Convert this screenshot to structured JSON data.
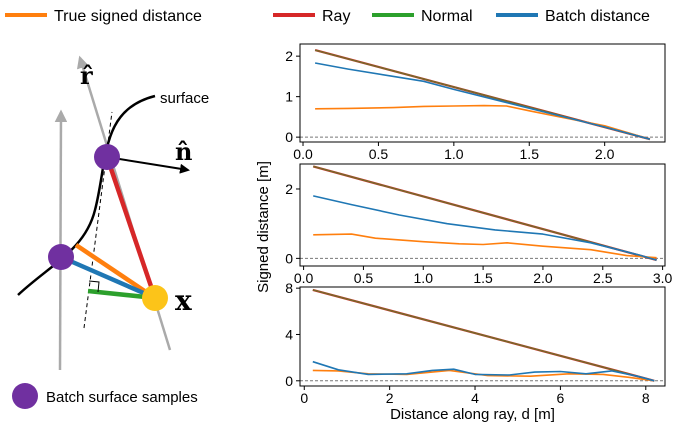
{
  "legend": {
    "items": [
      {
        "label": "True signed distance",
        "color": "#ff7f0e"
      },
      {
        "label": "Ray",
        "color": "#d62728"
      },
      {
        "label": "Normal",
        "color": "#2ca02c"
      },
      {
        "label": "Batch distance",
        "color": "#1f77b4"
      }
    ],
    "placement": "top"
  },
  "diagram": {
    "surface_label": "surface",
    "ray_label": "r̂",
    "normal_label": "n̂",
    "point_label": "x",
    "samples_label": "Batch surface samples",
    "sample_color": "#7030a0",
    "point_color": "#fcc419"
  },
  "chart_data": [
    {
      "type": "line",
      "xlim": [
        -0.02,
        2.4
      ],
      "ylim": [
        -0.12,
        2.3
      ],
      "xticks": [
        0.0,
        0.5,
        1.0,
        1.5,
        2.0
      ],
      "xtick_labels": [
        "0.0",
        "0.5",
        "1.0",
        "1.5",
        "2.0"
      ],
      "yticks": [
        0,
        1,
        2
      ],
      "ytick_labels": [
        "0",
        "1",
        "2"
      ],
      "zero_line": true,
      "series": [
        {
          "key": "ray",
          "color": "#d62728",
          "x": [
            0.08,
            2.3
          ],
          "y": [
            2.15,
            -0.05
          ]
        },
        {
          "key": "normal",
          "color": "#2ca02c",
          "x": [
            0.08,
            2.3
          ],
          "y": [
            2.15,
            -0.05
          ]
        },
        {
          "key": "true",
          "color": "#ff7f0e",
          "x": [
            0.08,
            0.3,
            0.6,
            0.8,
            1.0,
            1.2,
            1.35,
            1.5,
            1.7,
            2.0,
            2.3
          ],
          "y": [
            0.7,
            0.71,
            0.73,
            0.76,
            0.77,
            0.78,
            0.77,
            0.65,
            0.5,
            0.28,
            -0.05
          ]
        },
        {
          "key": "batch",
          "color": "#1f77b4",
          "x": [
            0.08,
            0.3,
            0.6,
            0.8,
            1.0,
            1.3,
            1.6,
            2.0,
            2.3
          ],
          "y": [
            1.83,
            1.68,
            1.5,
            1.38,
            1.18,
            0.9,
            0.62,
            0.25,
            -0.05
          ]
        }
      ]
    },
    {
      "type": "line",
      "xlim": [
        -0.03,
        3.02
      ],
      "ylim": [
        -0.22,
        2.72
      ],
      "xticks": [
        0.0,
        0.5,
        1.0,
        1.5,
        2.0,
        2.5,
        3.0
      ],
      "xtick_labels": [
        "0.0",
        "0.5",
        "1.0",
        "1.5",
        "2.0",
        "2.5",
        "3.0"
      ],
      "yticks": [
        0,
        2
      ],
      "ytick_labels": [
        "0",
        "2"
      ],
      "zero_line": true,
      "series": [
        {
          "key": "ray",
          "color": "#d62728",
          "x": [
            0.08,
            2.95
          ],
          "y": [
            2.65,
            -0.05
          ]
        },
        {
          "key": "normal",
          "color": "#2ca02c",
          "x": [
            0.08,
            2.95
          ],
          "y": [
            2.65,
            -0.05
          ]
        },
        {
          "key": "true",
          "color": "#ff7f0e",
          "x": [
            0.08,
            0.4,
            0.6,
            1.0,
            1.3,
            1.5,
            1.7,
            2.0,
            2.4,
            2.7,
            2.95
          ],
          "y": [
            0.68,
            0.7,
            0.58,
            0.48,
            0.42,
            0.4,
            0.45,
            0.35,
            0.25,
            0.08,
            0.02
          ]
        },
        {
          "key": "batch",
          "color": "#1f77b4",
          "x": [
            0.08,
            0.4,
            0.8,
            1.2,
            1.6,
            2.0,
            2.4,
            2.8,
            2.95
          ],
          "y": [
            1.8,
            1.55,
            1.25,
            1.0,
            0.82,
            0.7,
            0.45,
            0.1,
            -0.05
          ]
        }
      ]
    },
    {
      "type": "line",
      "xlim": [
        -0.1,
        8.45
      ],
      "ylim": [
        -0.45,
        8.1
      ],
      "xticks": [
        0,
        2,
        4,
        6,
        8
      ],
      "xtick_labels": [
        "0",
        "2",
        "4",
        "6",
        "8"
      ],
      "yticks": [
        0,
        4,
        8
      ],
      "ytick_labels": [
        "0",
        "4",
        "8"
      ],
      "zero_line": true,
      "xlabel": "Distance along ray, d [m]",
      "series": [
        {
          "key": "ray",
          "color": "#d62728",
          "x": [
            0.2,
            8.2
          ],
          "y": [
            7.85,
            0.0
          ]
        },
        {
          "key": "normal",
          "color": "#2ca02c",
          "x": [
            0.2,
            8.2
          ],
          "y": [
            7.85,
            0.0
          ]
        },
        {
          "key": "true",
          "color": "#ff7f0e",
          "x": [
            0.2,
            0.8,
            1.5,
            2.4,
            3.4,
            4.3,
            5.3,
            6.2,
            7.0,
            7.6,
            8.2
          ],
          "y": [
            0.9,
            0.85,
            0.6,
            0.55,
            0.9,
            0.45,
            0.4,
            0.6,
            0.55,
            0.3,
            0.0
          ]
        },
        {
          "key": "batch",
          "color": "#1f77b4",
          "x": [
            0.2,
            0.8,
            1.5,
            2.4,
            3.0,
            3.5,
            4.0,
            4.8,
            5.4,
            6.0,
            6.6,
            7.2,
            7.8,
            8.2
          ],
          "y": [
            1.65,
            0.95,
            0.55,
            0.6,
            0.9,
            1.0,
            0.55,
            0.5,
            0.75,
            0.8,
            0.6,
            0.85,
            0.4,
            0.0
          ]
        }
      ]
    }
  ],
  "y_label": "Signed distance [m]"
}
